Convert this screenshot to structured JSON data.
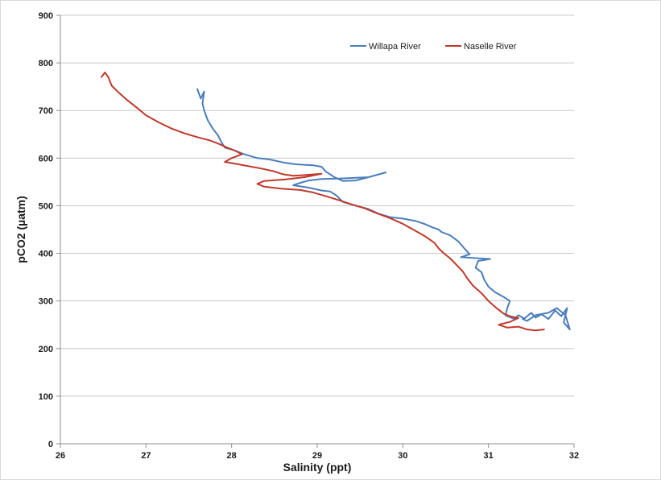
{
  "chart_data": {
    "type": "line",
    "xlabel": "Salinity (ppt)",
    "ylabel": "pCO2 (µatm)",
    "xlim": [
      26,
      32
    ],
    "ylim": [
      0,
      900
    ],
    "x_ticks": [
      "26",
      "27",
      "28",
      "29",
      "30",
      "31",
      "32"
    ],
    "y_ticks": [
      "0",
      "100",
      "200",
      "300",
      "400",
      "500",
      "600",
      "700",
      "800",
      "900"
    ],
    "grid": "horizontal",
    "legend_position": "top-right",
    "series": [
      {
        "name": "Willapa River",
        "color": "#4a7ebb",
        "points": [
          [
            27.6,
            745
          ],
          [
            27.64,
            725
          ],
          [
            27.68,
            740
          ],
          [
            27.66,
            715
          ],
          [
            27.68,
            700
          ],
          [
            27.72,
            680
          ],
          [
            27.78,
            662
          ],
          [
            27.84,
            648
          ],
          [
            27.88,
            634
          ],
          [
            27.92,
            622
          ],
          [
            28.02,
            617
          ],
          [
            28.15,
            608
          ],
          [
            28.3,
            600
          ],
          [
            28.45,
            597
          ],
          [
            28.6,
            591
          ],
          [
            28.75,
            587
          ],
          [
            28.95,
            585
          ],
          [
            29.05,
            582
          ],
          [
            29.1,
            572
          ],
          [
            29.2,
            560
          ],
          [
            29.3,
            552
          ],
          [
            29.45,
            553
          ],
          [
            29.6,
            560
          ],
          [
            29.8,
            570
          ],
          [
            29.6,
            560
          ],
          [
            29.25,
            557
          ],
          [
            29.05,
            556
          ],
          [
            28.9,
            553
          ],
          [
            28.8,
            548
          ],
          [
            28.72,
            543
          ],
          [
            28.9,
            538
          ],
          [
            29.05,
            532
          ],
          [
            29.15,
            530
          ],
          [
            29.22,
            522
          ],
          [
            29.3,
            508
          ],
          [
            29.45,
            500
          ],
          [
            29.6,
            493
          ],
          [
            29.72,
            483
          ],
          [
            29.85,
            476
          ],
          [
            30.0,
            473
          ],
          [
            30.15,
            468
          ],
          [
            30.25,
            462
          ],
          [
            30.35,
            454
          ],
          [
            30.42,
            450
          ],
          [
            30.45,
            445
          ],
          [
            30.55,
            438
          ],
          [
            30.65,
            425
          ],
          [
            30.72,
            410
          ],
          [
            30.78,
            398
          ],
          [
            30.68,
            392
          ],
          [
            30.85,
            390
          ],
          [
            31.02,
            388
          ],
          [
            30.88,
            384
          ],
          [
            30.85,
            370
          ],
          [
            30.92,
            360
          ],
          [
            30.95,
            345
          ],
          [
            31.0,
            330
          ],
          [
            31.08,
            318
          ],
          [
            31.18,
            308
          ],
          [
            31.25,
            300
          ],
          [
            31.22,
            285
          ],
          [
            31.2,
            270
          ],
          [
            31.3,
            262
          ],
          [
            31.35,
            270
          ],
          [
            31.42,
            263
          ],
          [
            31.5,
            275
          ],
          [
            31.55,
            265
          ],
          [
            31.62,
            272
          ],
          [
            31.7,
            262
          ],
          [
            31.78,
            280
          ],
          [
            31.85,
            268
          ],
          [
            31.92,
            285
          ],
          [
            31.88,
            255
          ],
          [
            31.95,
            240
          ],
          [
            31.9,
            270
          ],
          [
            31.8,
            285
          ],
          [
            31.7,
            275
          ],
          [
            31.55,
            270
          ],
          [
            31.45,
            258
          ],
          [
            31.4,
            262
          ]
        ]
      },
      {
        "name": "Naselle River",
        "color": "#c0392b",
        "points": [
          [
            26.48,
            770
          ],
          [
            26.52,
            780
          ],
          [
            26.56,
            770
          ],
          [
            26.6,
            752
          ],
          [
            26.68,
            738
          ],
          [
            26.78,
            722
          ],
          [
            26.9,
            705
          ],
          [
            27.0,
            690
          ],
          [
            27.15,
            675
          ],
          [
            27.3,
            662
          ],
          [
            27.45,
            652
          ],
          [
            27.6,
            644
          ],
          [
            27.75,
            637
          ],
          [
            27.85,
            630
          ],
          [
            27.95,
            622
          ],
          [
            28.05,
            615
          ],
          [
            28.12,
            608
          ],
          [
            28.0,
            600
          ],
          [
            27.92,
            592
          ],
          [
            28.05,
            588
          ],
          [
            28.2,
            583
          ],
          [
            28.35,
            578
          ],
          [
            28.5,
            572
          ],
          [
            28.6,
            566
          ],
          [
            28.72,
            563
          ],
          [
            28.9,
            565
          ],
          [
            29.05,
            567
          ],
          [
            28.85,
            560
          ],
          [
            28.62,
            555
          ],
          [
            28.38,
            552
          ],
          [
            28.3,
            546
          ],
          [
            28.38,
            540
          ],
          [
            28.58,
            536
          ],
          [
            28.8,
            533
          ],
          [
            28.95,
            528
          ],
          [
            29.1,
            520
          ],
          [
            29.25,
            512
          ],
          [
            29.4,
            503
          ],
          [
            29.55,
            495
          ],
          [
            29.7,
            484
          ],
          [
            29.85,
            474
          ],
          [
            30.0,
            462
          ],
          [
            30.12,
            450
          ],
          [
            30.25,
            437
          ],
          [
            30.37,
            422
          ],
          [
            30.42,
            410
          ],
          [
            30.48,
            400
          ],
          [
            30.55,
            390
          ],
          [
            30.62,
            377
          ],
          [
            30.7,
            362
          ],
          [
            30.75,
            348
          ],
          [
            30.82,
            332
          ],
          [
            30.92,
            316
          ],
          [
            31.0,
            300
          ],
          [
            31.1,
            284
          ],
          [
            31.18,
            273
          ],
          [
            31.25,
            268
          ],
          [
            31.35,
            264
          ],
          [
            31.25,
            256
          ],
          [
            31.12,
            250
          ],
          [
            31.22,
            244
          ],
          [
            31.35,
            246
          ],
          [
            31.45,
            240
          ],
          [
            31.55,
            238
          ],
          [
            31.65,
            240
          ]
        ]
      }
    ]
  }
}
